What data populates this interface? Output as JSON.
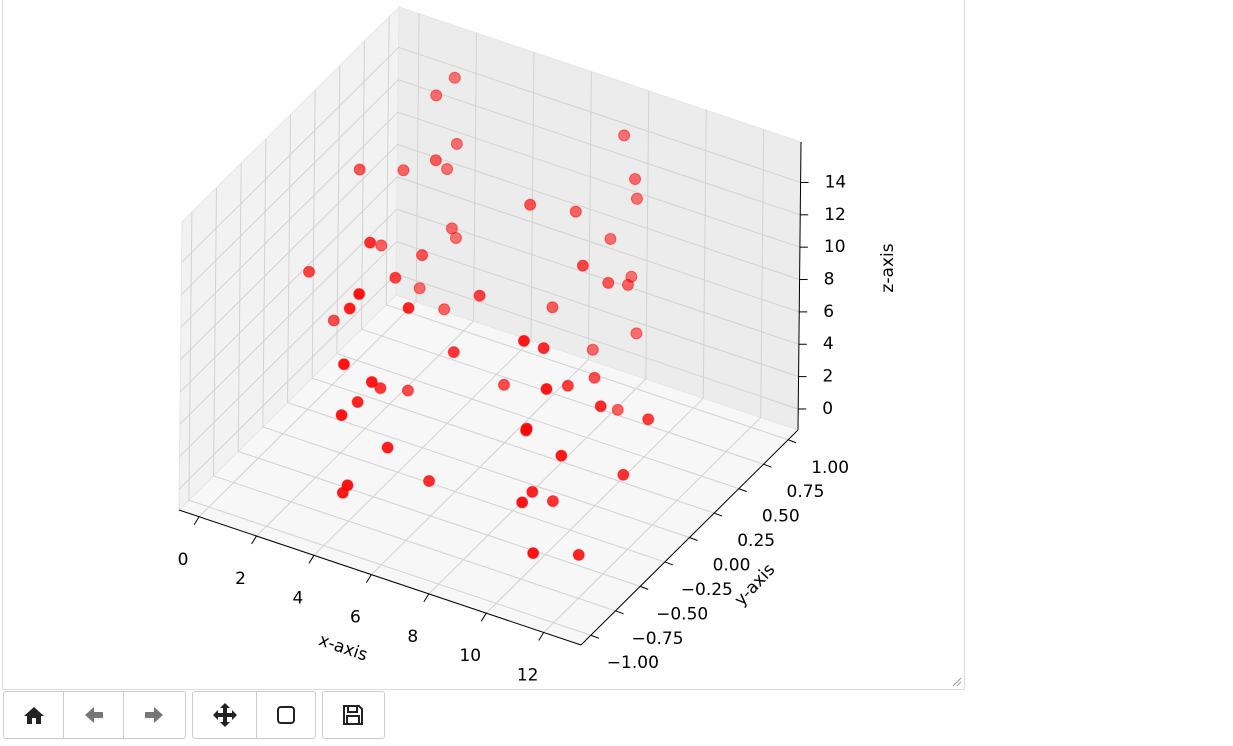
{
  "chart_data": {
    "type": "scatter3d",
    "xlabel": "x-axis",
    "ylabel": "y-axis",
    "zlabel": "z-axis",
    "color": "#ff0000",
    "grid": true,
    "xlim": [
      -0.7,
      13.3
    ],
    "ylim": [
      -1.1,
      1.1
    ],
    "zlim": [
      -1.3,
      16.5
    ],
    "xticks": [
      0,
      2,
      4,
      6,
      8,
      10,
      12
    ],
    "yticks": [
      {
        "value": -1,
        "label": "−1.00"
      },
      {
        "value": -0.75,
        "label": "−0.75"
      },
      {
        "value": -0.5,
        "label": "−0.50"
      },
      {
        "value": -0.25,
        "label": "−0.25"
      },
      {
        "value": 0,
        "label": "0.00"
      },
      {
        "value": 0.25,
        "label": "0.25"
      },
      {
        "value": 0.5,
        "label": "0.50"
      },
      {
        "value": 0.75,
        "label": "0.75"
      },
      {
        "value": 1,
        "label": "1.00"
      }
    ],
    "zticks": [
      0,
      2,
      4,
      6,
      8,
      10,
      12,
      14
    ],
    "x": [
      0,
      0.2,
      0.4,
      0.6,
      0.8,
      1.0,
      1.2,
      1.4,
      1.6,
      1.8,
      2.0,
      2.2,
      2.4,
      2.6,
      2.8,
      3.0,
      3.2,
      3.4,
      3.6,
      3.8,
      4.0,
      4.2,
      4.4,
      4.6,
      4.8,
      5.0,
      5.2,
      5.4,
      5.6,
      5.8,
      6.0,
      6.2,
      6.4,
      6.6,
      6.8,
      7.0,
      7.2,
      7.4,
      7.6,
      7.8,
      8.0,
      8.2,
      8.4,
      8.6,
      8.8,
      9.0,
      9.2,
      9.4,
      9.6,
      9.8,
      10.0,
      10.2,
      10.4,
      10.6,
      10.8,
      11.0,
      11.2,
      11.4,
      11.6,
      11.8,
      12.0,
      12.2,
      12.4
    ],
    "y": [
      0,
      0.2,
      0.39,
      0.56,
      0.72,
      0.84,
      0.93,
      0.99,
      1.0,
      0.97,
      0.91,
      0.81,
      0.68,
      0.52,
      0.33,
      0.14,
      -0.06,
      -0.26,
      -0.44,
      -0.61,
      -0.76,
      -0.87,
      -0.95,
      -0.99,
      -1.0,
      -0.96,
      -0.88,
      -0.77,
      -0.63,
      -0.46,
      -0.28,
      -0.08,
      0.12,
      0.31,
      0.49,
      0.66,
      0.79,
      0.9,
      0.97,
      1.0,
      0.99,
      0.94,
      0.85,
      0.73,
      0.58,
      0.41,
      0.22,
      0.03,
      -0.17,
      -0.37,
      -0.54,
      -0.7,
      -0.83,
      -0.92,
      -0.98,
      -1.0,
      -0.98,
      -0.92,
      -0.82,
      -0.69,
      -0.54,
      -0.36,
      -0.17
    ],
    "z": [
      7.2,
      3.1,
      11.4,
      5.8,
      9.6,
      1.7,
      13.2,
      8.4,
      14.1,
      4.5,
      10.8,
      6.3,
      2.2,
      12.5,
      7.9,
      0.8,
      9.1,
      3.6,
      13.8,
      5.1,
      11.9,
      1.3,
      6.7,
      10.2,
      2.9,
      14.6,
      8.8,
      4.2,
      12.1,
      0.5,
      7.5,
      9.9,
      3.3,
      13.4,
      6.1,
      11.1,
      1.9,
      8.2,
      14.3,
      5.5,
      10.5,
      2.6,
      12.8,
      7.1,
      0.4,
      9.4,
      4.8,
      13.0,
      6.9,
      1.1,
      11.7,
      3.9,
      8.6,
      14.8,
      5.3,
      10.1,
      2.4,
      12.3,
      7.7,
      0.9,
      9.3,
      4.1,
      6.5
    ]
  }
}
